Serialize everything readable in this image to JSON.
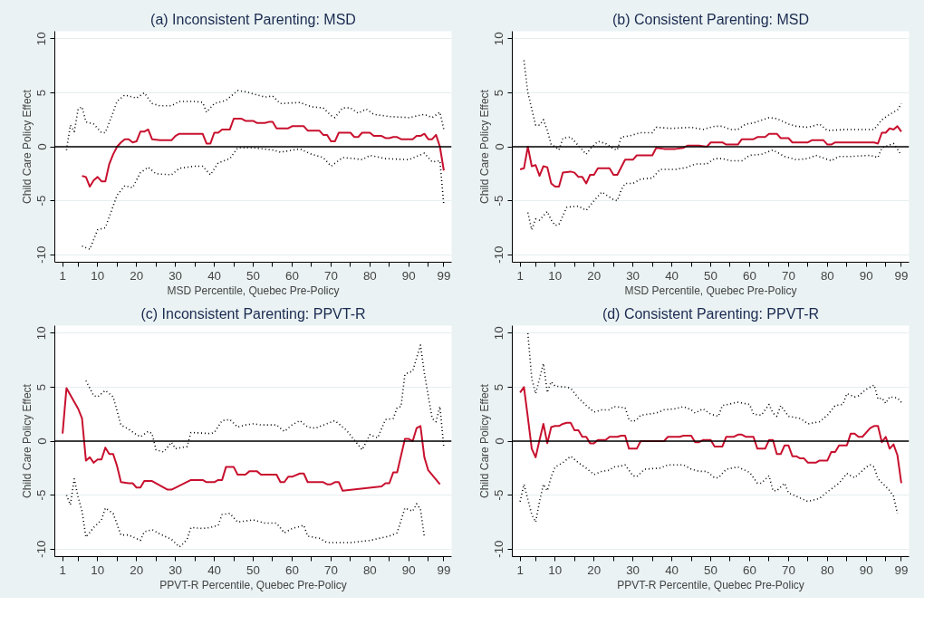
{
  "chart_data": [
    {
      "type": "line",
      "title": "(a) Inconsistent Parenting: MSD",
      "xlabel": "MSD Percentile, Quebec Pre-Policy",
      "ylabel": "Child Care Policy Effect",
      "xlim": [
        -1,
        101
      ],
      "ylim": [
        -10.7,
        10.7
      ],
      "xticks": [
        1,
        {
          "value": 5,
          "label": null
        },
        10,
        {
          "value": 15,
          "label": null
        },
        20,
        {
          "value": 25,
          "label": null
        },
        30,
        {
          "value": 35,
          "label": null
        },
        40,
        {
          "value": 45,
          "label": null
        },
        50,
        {
          "value": 55,
          "label": null
        },
        60,
        {
          "value": 65,
          "label": null
        },
        70,
        {
          "value": 75,
          "label": null
        },
        80,
        {
          "value": 85,
          "label": null
        },
        90,
        {
          "value": 95,
          "label": null
        },
        99
      ],
      "yticks": [
        -10,
        -5,
        0,
        5,
        10
      ],
      "grid": "y",
      "ref_lines": [
        {
          "axis": "y",
          "value": 0,
          "color": "#000000"
        }
      ],
      "series": [
        {
          "color": "#c8102e",
          "line_style": "solid",
          "x": [
            6,
            7,
            8,
            9,
            10,
            11,
            12,
            13,
            14,
            15,
            16,
            17,
            18,
            19,
            20,
            21,
            22,
            23,
            24,
            26,
            29,
            30,
            31,
            37,
            38,
            39,
            40,
            41,
            42,
            44,
            45,
            47,
            48,
            50,
            51,
            53,
            54,
            55,
            56,
            59,
            60,
            63,
            64,
            67,
            68,
            69,
            70,
            71,
            72,
            75,
            76,
            77,
            78,
            80,
            81,
            83,
            84,
            85,
            86,
            87,
            88,
            91,
            92,
            93,
            94,
            95,
            96,
            97,
            98,
            99
          ],
          "values": [
            -2.7,
            -2.8,
            -3.7,
            -3.1,
            -2.8,
            -3.2,
            -3.2,
            -1.6,
            -0.7,
            0,
            0.4,
            0.7,
            0.7,
            0.4,
            0.5,
            1.4,
            1.4,
            1.6,
            0.7,
            0.6,
            0.6,
            1.0,
            1.2,
            1.2,
            0.3,
            0.3,
            1.3,
            1.3,
            1.6,
            1.6,
            2.6,
            2.6,
            2.4,
            2.4,
            2.2,
            2.2,
            2.3,
            2.3,
            1.7,
            1.7,
            1.9,
            1.9,
            1.5,
            1.5,
            1.1,
            1.1,
            0.5,
            0.5,
            1.3,
            1.3,
            0.9,
            0.9,
            1.3,
            1.3,
            1.0,
            1.0,
            0.8,
            0.8,
            0.9,
            0.9,
            0.7,
            0.7,
            1.0,
            1.0,
            1.2,
            0.7,
            0.7,
            1.1,
            0,
            -2.2
          ]
        },
        {
          "color": "#000000",
          "line_style": "dotted",
          "x": [
            2,
            3,
            4,
            5,
            6,
            7,
            9,
            11,
            12,
            14,
            15,
            17,
            20,
            22,
            24,
            26,
            29,
            31,
            35,
            37,
            38,
            40,
            43,
            46,
            48,
            50,
            53,
            55,
            57,
            62,
            65,
            68,
            70,
            71,
            73,
            75,
            77,
            79,
            81,
            85,
            90,
            94,
            96,
            98,
            99
          ],
          "values": [
            -0.3,
            2.0,
            1.4,
            3.5,
            3.7,
            2.3,
            2.1,
            1.3,
            1.3,
            3.2,
            4.2,
            4.8,
            4.5,
            5.0,
            4.0,
            3.8,
            3.8,
            4.2,
            4.2,
            4.1,
            3.2,
            4.0,
            4.3,
            5.2,
            5.1,
            4.9,
            4.6,
            4.7,
            4.0,
            4.1,
            3.7,
            3.6,
            2.9,
            2.7,
            3.6,
            3.6,
            3.1,
            3.5,
            3.0,
            2.8,
            2.7,
            3.0,
            2.7,
            3.2,
            1.6
          ]
        },
        {
          "color": "#000000",
          "line_style": "dotted",
          "x": [
            6,
            8,
            10,
            12,
            15,
            17,
            19,
            21,
            23,
            25,
            29,
            31,
            35,
            37,
            39,
            41,
            44,
            46,
            50,
            55,
            57,
            62,
            65,
            68,
            70,
            73,
            76,
            78,
            80,
            84,
            90,
            94,
            96,
            98,
            99
          ],
          "values": [
            -9.2,
            -9.5,
            -7.7,
            -7.5,
            -4.5,
            -3.6,
            -3.8,
            -2.4,
            -1.9,
            -2.5,
            -2.6,
            -2.0,
            -1.8,
            -1.8,
            -2.6,
            -1.5,
            -1.1,
            -0.1,
            -0.1,
            -0.3,
            -0.5,
            -0.2,
            -0.7,
            -1.0,
            -1.8,
            -1.0,
            -1.1,
            -1.2,
            -0.8,
            -1.1,
            -1.2,
            -0.6,
            -1.4,
            -1.3,
            -5.4
          ]
        }
      ]
    },
    {
      "type": "line",
      "title": "(b) Consistent Parenting: MSD",
      "xlabel": "MSD Percentile, Quebec Pre-Policy",
      "ylabel": "Child Care Policy Effect",
      "xlim": [
        -1,
        101
      ],
      "ylim": [
        -10.7,
        10.7
      ],
      "xticks": [
        1,
        {
          "value": 5,
          "label": null
        },
        10,
        {
          "value": 15,
          "label": null
        },
        20,
        {
          "value": 25,
          "label": null
        },
        30,
        {
          "value": 35,
          "label": null
        },
        40,
        {
          "value": 45,
          "label": null
        },
        50,
        {
          "value": 55,
          "label": null
        },
        60,
        {
          "value": 65,
          "label": null
        },
        70,
        {
          "value": 75,
          "label": null
        },
        80,
        {
          "value": 85,
          "label": null
        },
        90,
        {
          "value": 95,
          "label": null
        },
        99
      ],
      "yticks": [
        -10,
        -5,
        0,
        5,
        10
      ],
      "grid": "y",
      "ref_lines": [
        {
          "axis": "y",
          "value": 0,
          "color": "#000000"
        }
      ],
      "series": [
        {
          "color": "#c8102e",
          "line_style": "solid",
          "x": [
            1,
            2,
            3,
            4,
            5,
            6,
            7,
            8,
            9,
            10,
            11,
            12,
            14,
            15,
            16,
            17,
            18,
            19,
            20,
            21,
            24,
            25,
            26,
            28,
            30,
            31,
            35,
            36,
            38,
            41,
            43,
            44,
            47,
            49,
            50,
            53,
            54,
            57,
            58,
            61,
            62,
            64,
            65,
            67,
            68,
            70,
            71,
            75,
            76,
            79,
            80,
            81,
            82,
            92,
            93,
            94,
            95,
            96,
            97,
            98,
            99
          ],
          "values": [
            -2.1,
            -2.0,
            0,
            -1.8,
            -1.7,
            -2.7,
            -1.8,
            -1.9,
            -3.4,
            -3.7,
            -3.7,
            -2.4,
            -2.3,
            -2.4,
            -2.8,
            -2.8,
            -3.4,
            -2.6,
            -2.6,
            -2.0,
            -2.0,
            -2.6,
            -2.6,
            -1.2,
            -1.2,
            -0.8,
            -0.8,
            -0.1,
            -0.2,
            -0.2,
            -0.1,
            0.1,
            0.1,
            0,
            0.4,
            0.4,
            0.2,
            0.2,
            0.7,
            0.7,
            0.9,
            0.9,
            1.2,
            1.2,
            0.8,
            0.8,
            0.4,
            0.4,
            0.6,
            0.6,
            0.2,
            0.2,
            0.4,
            0.4,
            0.3,
            1.3,
            1.3,
            1.7,
            1.6,
            1.9,
            1.4
          ]
        },
        {
          "color": "#000000",
          "line_style": "dotted",
          "x": [
            2,
            3,
            5,
            6,
            7,
            8,
            9,
            10,
            11,
            12,
            14,
            16,
            18,
            19,
            21,
            23,
            25,
            26,
            27,
            29,
            32,
            35,
            36,
            40,
            45,
            48,
            51,
            53,
            55,
            57,
            59,
            61,
            65,
            67,
            70,
            72,
            75,
            78,
            80,
            85,
            92,
            94,
            96,
            98,
            99
          ],
          "values": [
            8.0,
            5.0,
            2.0,
            2.0,
            2.5,
            1.5,
            0.2,
            0,
            -0.3,
            0.8,
            0.9,
            0.1,
            -0.7,
            -0.2,
            0.5,
            0.3,
            -0.2,
            -0.3,
            0.9,
            1.0,
            1.3,
            1.3,
            1.8,
            1.7,
            1.8,
            1.6,
            1.9,
            1.9,
            1.6,
            1.6,
            2.1,
            2.2,
            2.7,
            2.6,
            2.1,
            1.9,
            1.8,
            2.1,
            1.5,
            1.6,
            1.6,
            2.5,
            3.0,
            3.4,
            4.0
          ]
        },
        {
          "color": "#000000",
          "line_style": "dotted",
          "x": [
            3,
            4,
            5,
            6,
            8,
            9,
            10,
            11,
            13,
            16,
            18,
            20,
            22,
            25,
            26,
            27,
            28,
            30,
            32,
            35,
            37,
            41,
            44,
            46,
            49,
            51,
            53,
            55,
            58,
            60,
            63,
            66,
            69,
            72,
            75,
            77,
            81,
            83,
            86,
            91,
            93,
            94,
            97,
            98,
            99
          ],
          "values": [
            -6.1,
            -7.7,
            -6.7,
            -6.8,
            -6.0,
            -6.8,
            -7.3,
            -7.2,
            -5.6,
            -5.5,
            -5.9,
            -5.0,
            -4.2,
            -4.9,
            -5.0,
            -4.0,
            -3.4,
            -3.4,
            -3.0,
            -2.9,
            -2.1,
            -2.1,
            -1.9,
            -1.6,
            -1.6,
            -1.1,
            -1.1,
            -1.3,
            -1.3,
            -0.8,
            -0.7,
            -0.3,
            -0.9,
            -1.2,
            -1.1,
            -0.8,
            -1.3,
            -0.9,
            -0.9,
            -0.8,
            -1.0,
            -0.1,
            0.3,
            -0.2,
            -0.8
          ]
        }
      ]
    },
    {
      "type": "line",
      "title": "(c) Inconsistent Parenting: PPVT-R",
      "xlabel": "PPVT-R Percentile, Quebec Pre-Policy",
      "ylabel": "Child Care Policy Effect",
      "xlim": [
        -1,
        101
      ],
      "ylim": [
        -10.7,
        10.7
      ],
      "xticks": [
        1,
        {
          "value": 5,
          "label": null
        },
        10,
        {
          "value": 15,
          "label": null
        },
        20,
        {
          "value": 25,
          "label": null
        },
        30,
        {
          "value": 35,
          "label": null
        },
        40,
        {
          "value": 45,
          "label": null
        },
        50,
        {
          "value": 55,
          "label": null
        },
        60,
        {
          "value": 65,
          "label": null
        },
        70,
        {
          "value": 75,
          "label": null
        },
        80,
        {
          "value": 85,
          "label": null
        },
        90,
        {
          "value": 95,
          "label": null
        },
        99
      ],
      "yticks": [
        -10,
        -5,
        0,
        5,
        10
      ],
      "grid": "y",
      "ref_lines": [
        {
          "axis": "y",
          "value": 0,
          "color": "#000000"
        }
      ],
      "series": [
        {
          "color": "#c8102e",
          "line_style": "solid",
          "x": [
            1,
            2,
            5,
            6,
            7,
            8,
            9,
            10,
            11,
            12,
            13,
            14,
            15,
            16,
            18,
            19,
            20,
            21,
            22,
            24,
            28,
            29,
            34,
            37,
            38,
            40,
            41,
            42,
            43,
            45,
            46,
            48,
            49,
            51,
            52,
            56,
            57,
            58,
            59,
            60,
            62,
            63,
            64,
            68,
            69,
            70,
            71,
            72,
            73,
            83,
            84,
            85,
            86,
            87,
            89,
            90,
            91,
            92,
            93,
            94,
            95,
            98
          ],
          "values": [
            0.7,
            4.9,
            3.0,
            2.1,
            -1.8,
            -1.5,
            -2.0,
            -1.7,
            -1.7,
            -0.6,
            -1.2,
            -1.2,
            -2.3,
            -3.8,
            -3.9,
            -3.9,
            -4.3,
            -4.3,
            -3.7,
            -3.7,
            -4.5,
            -4.5,
            -3.6,
            -3.6,
            -3.8,
            -3.8,
            -3.6,
            -3.6,
            -2.4,
            -2.4,
            -3.1,
            -3.1,
            -2.8,
            -2.8,
            -3.1,
            -3.1,
            -3.8,
            -3.8,
            -3.3,
            -3.3,
            -3.0,
            -3.0,
            -3.8,
            -3.8,
            -4.0,
            -4.0,
            -3.8,
            -3.8,
            -4.6,
            -4.2,
            -3.9,
            -3.9,
            -2.9,
            -2.9,
            0.2,
            0.2,
            0,
            1.2,
            1.4,
            -1.5,
            -2.7,
            -4.0
          ]
        },
        {
          "color": "#000000",
          "line_style": "dotted",
          "x": [
            7,
            9,
            10,
            12,
            14,
            16,
            18,
            20,
            21,
            23,
            24,
            25,
            27,
            29,
            30,
            33,
            34,
            39,
            40,
            42,
            44,
            46,
            48,
            50,
            52,
            56,
            58,
            60,
            62,
            64,
            66,
            71,
            74,
            78,
            80,
            82,
            84,
            86,
            87,
            88,
            89,
            91,
            93,
            94,
            95,
            96,
            97,
            98,
            99
          ],
          "values": [
            5.6,
            4.2,
            4.1,
            4.7,
            4.1,
            1.5,
            1.1,
            0.6,
            0.4,
            0.9,
            0.7,
            -0.8,
            -1.0,
            -0.1,
            -0.7,
            -0.5,
            0.8,
            0.7,
            0.8,
            1.9,
            2.0,
            1.3,
            1.5,
            1.6,
            1.5,
            1.5,
            0.9,
            1.5,
            1.9,
            1.3,
            1.2,
            1.9,
            1.0,
            -0.8,
            0.6,
            0.3,
            2.0,
            2.1,
            3.1,
            3.2,
            6.2,
            6.5,
            8.9,
            6.3,
            4.2,
            2.1,
            1.8,
            3.2,
            -0.6
          ]
        },
        {
          "color": "#000000",
          "line_style": "dotted",
          "x": [
            2,
            3,
            4,
            5,
            6,
            7,
            9,
            11,
            12,
            14,
            16,
            18,
            21,
            22,
            24,
            26,
            29,
            31,
            32,
            33,
            34,
            37,
            39,
            41,
            42,
            44,
            46,
            48,
            50,
            53,
            56,
            58,
            60,
            63,
            64,
            67,
            69,
            75,
            80,
            85,
            87,
            89,
            91,
            92,
            93,
            94
          ],
          "values": [
            -5.0,
            -5.9,
            -3.5,
            -5.2,
            -6.5,
            -8.9,
            -8.0,
            -7.3,
            -6.2,
            -6.7,
            -8.7,
            -8.7,
            -9.2,
            -8.4,
            -8.2,
            -8.6,
            -9.1,
            -9.8,
            -9.5,
            -9.1,
            -8.0,
            -8.1,
            -8.0,
            -7.8,
            -6.8,
            -6.7,
            -7.5,
            -7.4,
            -7.3,
            -7.6,
            -7.6,
            -8.5,
            -8.1,
            -7.8,
            -8.8,
            -9.0,
            -9.4,
            -9.4,
            -9.2,
            -8.8,
            -8.5,
            -6.2,
            -6.5,
            -5.8,
            -6.3,
            -8.9
          ]
        }
      ]
    },
    {
      "type": "line",
      "title": "(d) Consistent Parenting: PPVT-R",
      "xlabel": "PPVT-R Percentile, Quebec Pre-Policy",
      "ylabel": "Child Care Policy Effect",
      "xlim": [
        -1,
        101
      ],
      "ylim": [
        -10.7,
        10.7
      ],
      "xticks": [
        1,
        {
          "value": 5,
          "label": null
        },
        10,
        {
          "value": 15,
          "label": null
        },
        20,
        {
          "value": 25,
          "label": null
        },
        30,
        {
          "value": 35,
          "label": null
        },
        40,
        {
          "value": 45,
          "label": null
        },
        50,
        {
          "value": 55,
          "label": null
        },
        60,
        {
          "value": 65,
          "label": null
        },
        70,
        {
          "value": 75,
          "label": null
        },
        80,
        {
          "value": 85,
          "label": null
        },
        90,
        {
          "value": 95,
          "label": null
        },
        99
      ],
      "yticks": [
        -10,
        -5,
        0,
        5,
        10
      ],
      "grid": "y",
      "ref_lines": [
        {
          "axis": "y",
          "value": 0,
          "color": "#000000"
        }
      ],
      "series": [
        {
          "color": "#c8102e",
          "line_style": "solid",
          "x": [
            1,
            2,
            3,
            4,
            5,
            6,
            7,
            8,
            9,
            10,
            11,
            12,
            13,
            14,
            15,
            16,
            17,
            18,
            19,
            20,
            21,
            23,
            24,
            26,
            27,
            28,
            29,
            31,
            32,
            38,
            39,
            42,
            43,
            45,
            46,
            47,
            48,
            50,
            51,
            53,
            54,
            56,
            57,
            58,
            59,
            61,
            62,
            64,
            65,
            66,
            67,
            68,
            69,
            70,
            71,
            72,
            73,
            74,
            75,
            77,
            78,
            80,
            81,
            82,
            83,
            85,
            86,
            87,
            88,
            89,
            91,
            92,
            93,
            94,
            95,
            96,
            97,
            98,
            99
          ],
          "values": [
            4.5,
            5.0,
            2.2,
            -0.7,
            -1.5,
            0.1,
            1.6,
            -0.2,
            1.3,
            1.4,
            1.4,
            1.6,
            1.7,
            1.7,
            1.0,
            1.0,
            0.4,
            0.4,
            -0.2,
            -0.2,
            0.1,
            0.1,
            0.4,
            0.4,
            0.5,
            0.5,
            -0.7,
            -0.7,
            0,
            0,
            0.4,
            0.4,
            0.5,
            0.5,
            -0.1,
            -0.1,
            0.1,
            0.1,
            -0.5,
            -0.5,
            0.4,
            0.4,
            0.6,
            0.6,
            0.4,
            0.4,
            -0.7,
            -0.7,
            0.1,
            0.1,
            -1.2,
            -1.2,
            -0.4,
            -0.4,
            -1.4,
            -1.4,
            -1.6,
            -1.6,
            -2.0,
            -2.0,
            -1.8,
            -1.8,
            -1.0,
            -1.0,
            -0.4,
            -0.4,
            0.7,
            0.7,
            0.4,
            0.4,
            1.2,
            1.4,
            1.4,
            -0.1,
            0.4,
            -0.7,
            -0.3,
            -1.3,
            -3.9
          ]
        },
        {
          "color": "#000000",
          "line_style": "dotted",
          "x": [
            3,
            4,
            5,
            6,
            7,
            8,
            9,
            10,
            13,
            14,
            16,
            18,
            20,
            22,
            24,
            25,
            28,
            29,
            30,
            31,
            32,
            36,
            38,
            41,
            43,
            45,
            46,
            48,
            50,
            52,
            53,
            57,
            60,
            61,
            63,
            65,
            66,
            67,
            68,
            70,
            73,
            75,
            78,
            80,
            82,
            84,
            85,
            87,
            88,
            90,
            92,
            93,
            94,
            95,
            96,
            98,
            99
          ],
          "values": [
            10.0,
            5.8,
            4.4,
            5.8,
            7.2,
            4.5,
            5.5,
            5.1,
            5.0,
            4.9,
            4.0,
            3.3,
            2.7,
            2.9,
            2.9,
            3.2,
            3.1,
            2.0,
            1.8,
            2.0,
            2.4,
            2.6,
            2.9,
            3.0,
            3.2,
            2.9,
            2.6,
            3.0,
            2.5,
            2.3,
            3.3,
            3.6,
            3.4,
            2.5,
            2.4,
            3.4,
            2.6,
            2.3,
            3.3,
            2.3,
            2.1,
            1.6,
            1.8,
            2.4,
            3.3,
            3.4,
            4.4,
            4.1,
            4.2,
            4.8,
            5.2,
            3.9,
            4.0,
            3.5,
            4.1,
            4.0,
            3.6
          ]
        },
        {
          "color": "#000000",
          "line_style": "dotted",
          "x": [
            1,
            2,
            4,
            5,
            6,
            7,
            8,
            9,
            10,
            12,
            14,
            16,
            18,
            20,
            22,
            24,
            25,
            27,
            28,
            30,
            31,
            33,
            37,
            39,
            43,
            45,
            47,
            49,
            51,
            52,
            54,
            57,
            60,
            62,
            63,
            65,
            66,
            67,
            69,
            70,
            72,
            75,
            78,
            80,
            83,
            85,
            87,
            90,
            91,
            92,
            93,
            95,
            96,
            97,
            98
          ],
          "values": [
            -5.6,
            -4.0,
            -6.8,
            -7.5,
            -5.6,
            -4.0,
            -4.6,
            -3.3,
            -2.4,
            -2.0,
            -1.4,
            -2.0,
            -2.5,
            -3.1,
            -2.8,
            -2.7,
            -2.4,
            -2.3,
            -2.2,
            -3.2,
            -3.3,
            -2.6,
            -2.5,
            -2.2,
            -2.2,
            -2.6,
            -2.8,
            -2.8,
            -3.4,
            -3.4,
            -2.6,
            -2.4,
            -2.9,
            -3.9,
            -3.9,
            -3.2,
            -4.6,
            -4.6,
            -3.9,
            -4.8,
            -5.1,
            -5.6,
            -5.3,
            -4.7,
            -3.9,
            -3.0,
            -3.4,
            -2.4,
            -2.2,
            -2.4,
            -3.5,
            -4.2,
            -4.6,
            -5.1,
            -6.7
          ]
        }
      ]
    }
  ]
}
